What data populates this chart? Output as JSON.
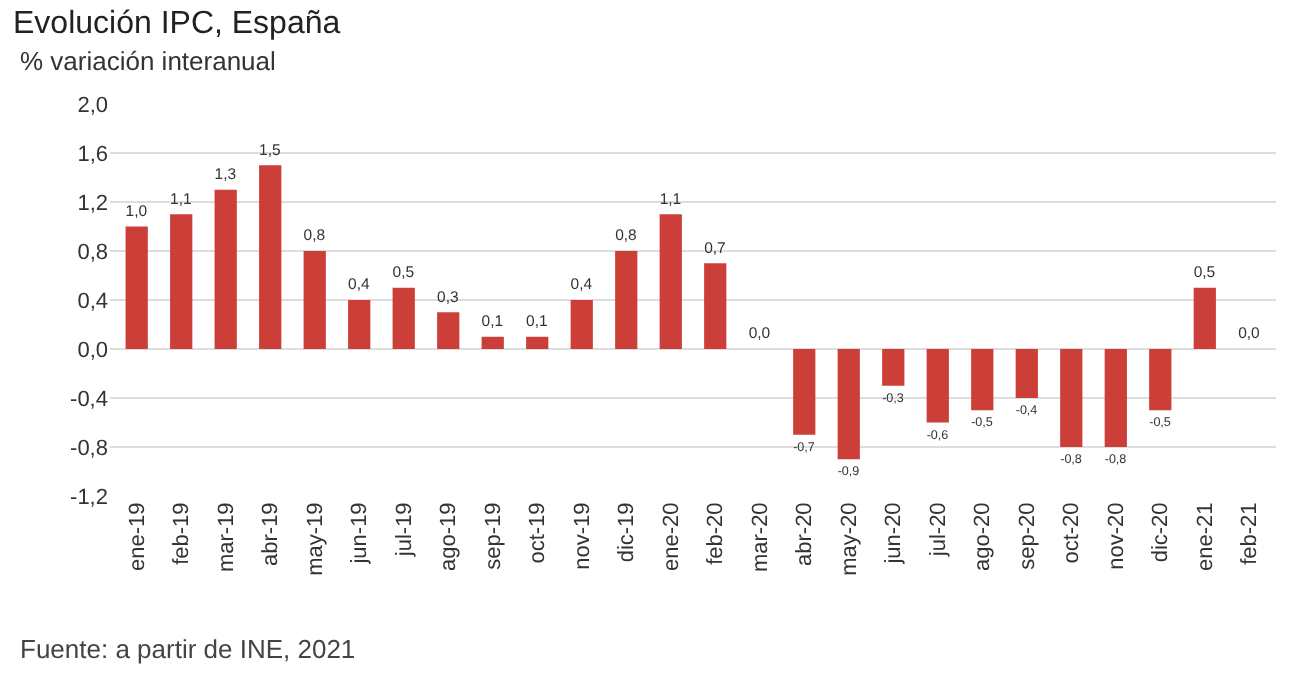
{
  "chart_data": {
    "type": "bar",
    "title": "Evolución IPC, España",
    "subtitle": "% variación interanual",
    "categories": [
      "ene-19",
      "feb-19",
      "mar-19",
      "abr-19",
      "may-19",
      "jun-19",
      "jul-19",
      "ago-19",
      "sep-19",
      "oct-19",
      "nov-19",
      "dic-19",
      "ene-20",
      "feb-20",
      "mar-20",
      "abr-20",
      "may-20",
      "jun-20",
      "jul-20",
      "ago-20",
      "sep-20",
      "oct-20",
      "nov-20",
      "dic-20",
      "ene-21",
      "feb-21"
    ],
    "values": [
      1.0,
      1.1,
      1.3,
      1.5,
      0.8,
      0.4,
      0.5,
      0.3,
      0.1,
      0.1,
      0.4,
      0.8,
      1.1,
      0.7,
      0.0,
      -0.7,
      -0.9,
      -0.3,
      -0.6,
      -0.5,
      -0.4,
      -0.8,
      -0.8,
      -0.5,
      0.5,
      0.0
    ],
    "value_labels": [
      "1,0",
      "1,1",
      "1,3",
      "1,5",
      "0,8",
      "0,4",
      "0,5",
      "0,3",
      "0,1",
      "0,1",
      "0,4",
      "0,8",
      "1,1",
      "0,7",
      "0,0",
      "-0,7",
      "-0,9",
      "-0,3",
      "-0,6",
      "-0,5",
      "-0,4",
      "-0,8",
      "-0,8",
      "-0,5",
      "0,5",
      "0,0"
    ],
    "color": "#cc3f38",
    "ylim": [
      -1.2,
      2.0
    ],
    "yticks": [
      {
        "value": -1.2,
        "label": "-1,2"
      },
      {
        "value": -0.8,
        "label": "-0,8"
      },
      {
        "value": -0.4,
        "label": "-0,4"
      },
      {
        "value": 0,
        "label": "0,0"
      },
      {
        "value": 0.4,
        "label": "0,4"
      },
      {
        "value": 0.8,
        "label": "0,8"
      },
      {
        "value": 1.2,
        "label": "1,2"
      },
      {
        "value": 1.6,
        "label": "1,6"
      },
      {
        "value": 2.0,
        "label": "2,0"
      }
    ],
    "grid": "y",
    "annotations": [
      "Fuente: a partir de INE, 2021"
    ]
  }
}
